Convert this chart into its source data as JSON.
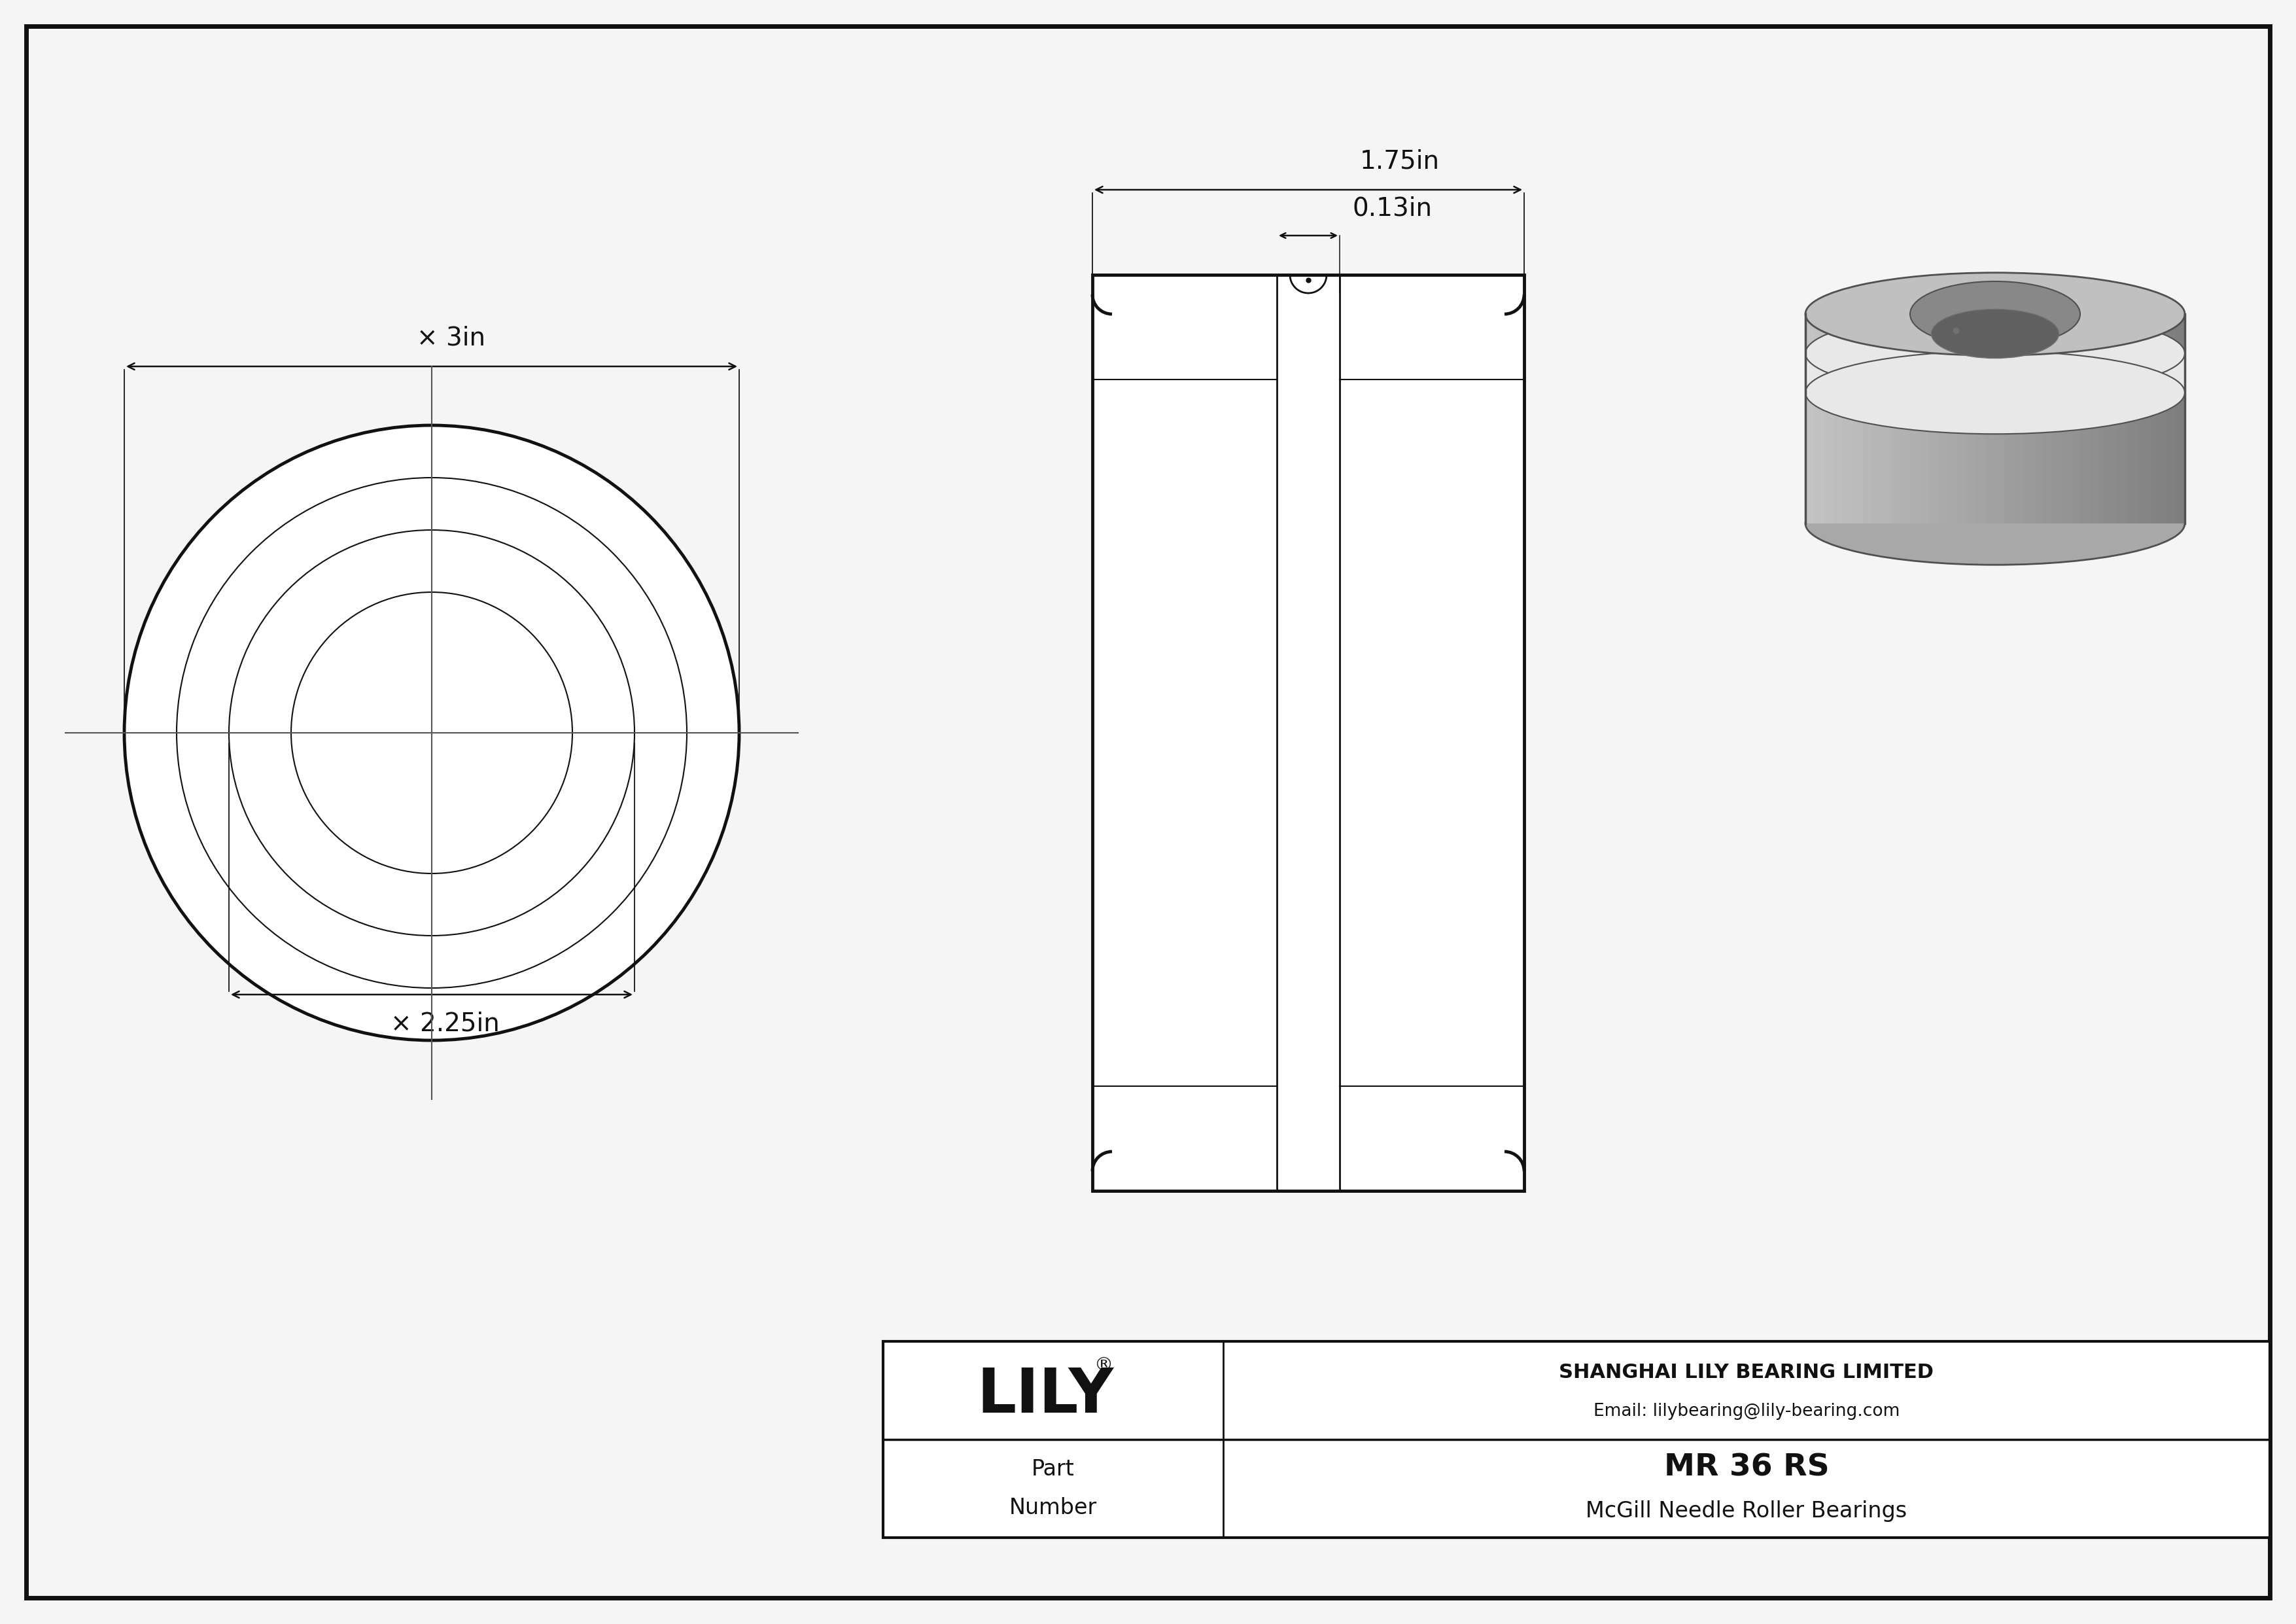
{
  "bg_color": "#f5f5f5",
  "border_color": "#000000",
  "drawing_bg": "#f5f5f5",
  "dark": "#111111",
  "title": "MR 36 RS",
  "subtitle": "McGill Needle Roller Bearings",
  "company": "SHANGHAI LILY BEARING LIMITED",
  "email": "Email: lilybearing@lily-bearing.com",
  "logo": "LILY",
  "logo_reg": "®",
  "part_label": "Part\nNumber",
  "dim_outer": "× 3in",
  "dim_inner": "× 2.25in",
  "dim_width": "1.75in",
  "dim_groove": "0.13in",
  "crosshair_color": "#555555",
  "lw_thick": 3.5,
  "lw_mid": 2.0,
  "lw_thin": 1.5,
  "lw_dim": 1.8,
  "fontsize_dim": 28,
  "fontsize_logo": 68,
  "fontsize_company": 22,
  "fontsize_email": 19,
  "fontsize_title": 34,
  "fontsize_subtitle": 24,
  "fontsize_part": 24
}
